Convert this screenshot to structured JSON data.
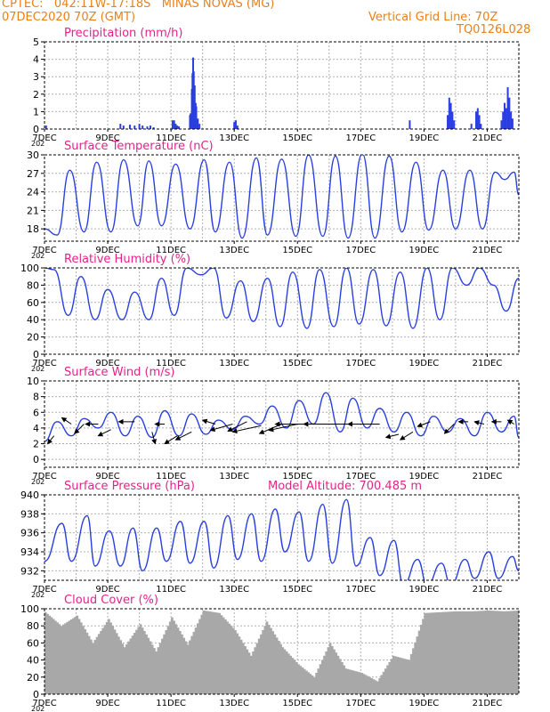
{
  "header": {
    "line1_left": "CPTEC:   042:11W-17:18S   MINAS NOVAS (MG)",
    "line2_left": "07DEC2020 70Z (GMT)",
    "line2_right": "Vertical Grid Line: 70Z",
    "line3_right": "TQ0126L028"
  },
  "colors": {
    "header": "#e8801a",
    "title": "#e8208a",
    "series": "#2a3fe0",
    "cloud": "#a8a8a8",
    "grid": "#b0b0b0"
  },
  "x_tick_labels": [
    "7DEC",
    "9DEC",
    "11DEC",
    "13DEC",
    "15DEC",
    "17DEC",
    "19DEC",
    "21DEC"
  ],
  "cut_year_label": "202",
  "chart_data": [
    {
      "type": "bar",
      "title": "Precipitation (mm/h)",
      "ylim": [
        0,
        5
      ],
      "yticks": [
        0,
        1,
        2,
        3,
        4,
        5
      ],
      "x": [
        0.05,
        2.4,
        2.5,
        2.7,
        2.85,
        3.0,
        3.1,
        3.25,
        3.35,
        3.45,
        4.05,
        4.1,
        4.15,
        4.2,
        4.25,
        4.6,
        4.62,
        4.66,
        4.68,
        4.7,
        4.72,
        4.75,
        4.78,
        4.8,
        4.85,
        4.9,
        6.0,
        6.05,
        6.1,
        11.55,
        12.75,
        12.8,
        12.85,
        12.9,
        12.95,
        13.5,
        13.65,
        13.7,
        13.75,
        13.8,
        14.45,
        14.5,
        14.55,
        14.6,
        14.65,
        14.7,
        14.75,
        14.8
      ],
      "values": [
        0.2,
        0.3,
        0.2,
        0.25,
        0.2,
        0.3,
        0.2,
        0.15,
        0.2,
        0.1,
        0.5,
        0.5,
        0.3,
        0.2,
        0.15,
        0.8,
        0.9,
        2.3,
        3.2,
        4.1,
        3.3,
        2.5,
        1.5,
        1.3,
        0.6,
        0.3,
        0.4,
        0.5,
        0.2,
        0.5,
        0.8,
        1.8,
        1.5,
        1.0,
        0.5,
        0.3,
        1.0,
        1.2,
        0.8,
        0.3,
        0.5,
        1.0,
        1.5,
        1.2,
        2.4,
        1.8,
        1.0,
        0.6
      ]
    },
    {
      "type": "line",
      "title": "Surface Temperature (nC)",
      "ylim": [
        16,
        30
      ],
      "yticks": [
        18,
        21,
        24,
        27,
        30
      ],
      "x": [
        0,
        0.4,
        0.8,
        1.25,
        1.65,
        2.1,
        2.5,
        2.95,
        3.3,
        3.7,
        4.15,
        4.6,
        5.05,
        5.4,
        5.85,
        6.25,
        6.7,
        7.05,
        7.5,
        7.95,
        8.35,
        8.8,
        9.2,
        9.6,
        10.05,
        10.45,
        10.9,
        11.3,
        11.75,
        12.15,
        12.6,
        13.0,
        13.45,
        13.85,
        14.25,
        14.55,
        14.85,
        15.0
      ],
      "values": [
        18.0,
        17.0,
        27.5,
        17.5,
        28.8,
        17.5,
        29.2,
        18.5,
        29.0,
        18.5,
        28.5,
        18.0,
        29.2,
        17.5,
        28.8,
        16.5,
        29.5,
        17.0,
        29.3,
        16.8,
        30.0,
        16.8,
        29.8,
        16.5,
        30.2,
        16.5,
        29.8,
        17.5,
        28.8,
        17.8,
        27.5,
        18.0,
        27.5,
        18.0,
        27.2,
        26.0,
        27.2,
        23.5
      ]
    },
    {
      "type": "line",
      "title": "Relative Humidity (%)",
      "ylim": [
        0,
        100
      ],
      "yticks": [
        0,
        20,
        40,
        60,
        80,
        100
      ],
      "x": [
        0,
        0.3,
        0.75,
        1.15,
        1.6,
        2.0,
        2.45,
        2.85,
        3.3,
        3.7,
        4.1,
        4.5,
        4.95,
        5.35,
        5.75,
        6.2,
        6.6,
        7.05,
        7.45,
        7.85,
        8.3,
        8.7,
        9.15,
        9.55,
        9.95,
        10.4,
        10.8,
        11.25,
        11.65,
        12.1,
        12.5,
        12.9,
        13.35,
        13.75,
        14.2,
        14.6,
        15.0
      ],
      "values": [
        100,
        98,
        45,
        90,
        40,
        75,
        40,
        72,
        40,
        88,
        45,
        100,
        92,
        100,
        42,
        85,
        38,
        88,
        32,
        95,
        30,
        98,
        32,
        100,
        35,
        98,
        33,
        95,
        30,
        100,
        40,
        100,
        80,
        100,
        80,
        50,
        88
      ]
    },
    {
      "type": "line",
      "title": "Surface Wind (m/s)",
      "ylim": [
        -1,
        10
      ],
      "yticks": [
        0,
        2,
        4,
        6,
        8,
        10
      ],
      "x": [
        0,
        0.4,
        0.85,
        1.25,
        1.7,
        2.1,
        2.55,
        2.95,
        3.4,
        3.8,
        4.25,
        4.65,
        5.1,
        5.5,
        5.95,
        6.35,
        6.8,
        7.2,
        7.65,
        8.05,
        8.5,
        8.9,
        9.35,
        9.75,
        10.2,
        10.6,
        11.05,
        11.45,
        11.9,
        12.3,
        12.75,
        13.15,
        13.6,
        14.0,
        14.45,
        14.85,
        15.0
      ],
      "values": [
        2.3,
        4.8,
        3.0,
        5.2,
        4.0,
        6.0,
        3.0,
        5.5,
        2.8,
        6.2,
        3.0,
        5.8,
        3.2,
        5.0,
        3.8,
        5.5,
        4.5,
        6.8,
        4.0,
        7.5,
        4.5,
        8.5,
        3.5,
        7.8,
        4.0,
        6.5,
        3.5,
        6.0,
        3.0,
        5.5,
        3.5,
        5.2,
        3.0,
        6.0,
        3.5,
        5.5,
        2.8
      ],
      "wind_vectors": [
        {
          "x": 0.3,
          "y": 3.0,
          "dx": -0.2,
          "dy": -1.0
        },
        {
          "x": 0.85,
          "y": 4.5,
          "dx": -0.3,
          "dy": 0.8
        },
        {
          "x": 1.25,
          "y": 4.5,
          "dx": -0.3,
          "dy": -1.2
        },
        {
          "x": 1.7,
          "y": 4.5,
          "dx": -0.4,
          "dy": 0.0
        },
        {
          "x": 2.1,
          "y": 3.8,
          "dx": -0.4,
          "dy": -0.8
        },
        {
          "x": 2.85,
          "y": 4.8,
          "dx": -0.5,
          "dy": 0.0
        },
        {
          "x": 3.4,
          "y": 3.5,
          "dx": 0.1,
          "dy": -1.5
        },
        {
          "x": 3.8,
          "y": 4.5,
          "dx": -0.3,
          "dy": 0.0
        },
        {
          "x": 4.2,
          "y": 3.0,
          "dx": -0.4,
          "dy": -1.0
        },
        {
          "x": 4.65,
          "y": 3.5,
          "dx": -0.5,
          "dy": -1.0
        },
        {
          "x": 5.4,
          "y": 4.5,
          "dx": -0.4,
          "dy": 0.5
        },
        {
          "x": 5.95,
          "y": 4.5,
          "dx": -0.7,
          "dy": -0.8
        },
        {
          "x": 6.4,
          "y": 4.8,
          "dx": -0.6,
          "dy": -1.2
        },
        {
          "x": 6.85,
          "y": 4.3,
          "dx": -0.9,
          "dy": -0.8
        },
        {
          "x": 7.5,
          "y": 4.5,
          "dx": -0.7,
          "dy": -1.2
        },
        {
          "x": 8.0,
          "y": 4.5,
          "dx": -0.9,
          "dy": -0.8
        },
        {
          "x": 8.6,
          "y": 4.5,
          "dx": -1.3,
          "dy": 0.0
        },
        {
          "x": 9.6,
          "y": 4.5,
          "dx": -1.4,
          "dy": 0.0
        },
        {
          "x": 10.6,
          "y": 4.5,
          "dx": -1.0,
          "dy": 0.0
        },
        {
          "x": 11.2,
          "y": 3.2,
          "dx": -0.4,
          "dy": -0.4
        },
        {
          "x": 11.65,
          "y": 3.5,
          "dx": -0.4,
          "dy": -1.0
        },
        {
          "x": 12.2,
          "y": 4.8,
          "dx": -0.4,
          "dy": -0.6
        },
        {
          "x": 12.95,
          "y": 4.5,
          "dx": -0.3,
          "dy": -1.2
        },
        {
          "x": 13.4,
          "y": 4.8,
          "dx": -0.3,
          "dy": 0.0
        },
        {
          "x": 13.9,
          "y": 4.5,
          "dx": -0.3,
          "dy": 0.3
        },
        {
          "x": 14.45,
          "y": 4.8,
          "dx": -0.3,
          "dy": 0.0
        },
        {
          "x": 14.85,
          "y": 4.5,
          "dx": -0.2,
          "dy": 0.5
        }
      ]
    },
    {
      "type": "line",
      "title": "Surface Pressure (hPa)",
      "subtitle": "Model Altitude: 700.485 m",
      "ylim": [
        931,
        940
      ],
      "yticks": [
        932,
        934,
        936,
        938,
        940
      ],
      "x": [
        0,
        0.55,
        0.85,
        1.35,
        1.6,
        2.05,
        2.4,
        2.8,
        3.1,
        3.55,
        3.85,
        4.3,
        4.6,
        5.05,
        5.35,
        5.8,
        6.1,
        6.55,
        6.85,
        7.3,
        7.6,
        8.05,
        8.35,
        8.8,
        9.1,
        9.55,
        9.85,
        10.3,
        10.6,
        11.05,
        11.35,
        11.8,
        12.1,
        12.55,
        12.85,
        13.3,
        13.6,
        14.05,
        14.35,
        14.8,
        15.0
      ],
      "values": [
        933.0,
        937.0,
        933.0,
        937.8,
        932.5,
        936.2,
        932.5,
        936.5,
        932.0,
        936.5,
        933.0,
        937.2,
        932.8,
        937.2,
        932.3,
        937.8,
        933.2,
        938.0,
        933.0,
        938.5,
        934.0,
        938.2,
        933.0,
        939.0,
        932.8,
        939.5,
        932.5,
        935.5,
        931.5,
        935.2,
        930.5,
        933.2,
        930.5,
        932.8,
        930.5,
        933.2,
        931.2,
        934.0,
        931.2,
        933.5,
        932.0
      ]
    },
    {
      "type": "area",
      "title": "Cloud Cover (%)",
      "ylim": [
        0,
        100
      ],
      "yticks": [
        0,
        20,
        40,
        60,
        80,
        100
      ],
      "x": [
        0,
        0.5,
        1.0,
        1.5,
        2.0,
        2.5,
        3.0,
        3.5,
        4.0,
        4.5,
        5.0,
        5.5,
        6.0,
        6.5,
        7.0,
        7.5,
        8.0,
        8.5,
        9.0,
        9.5,
        10.0,
        10.5,
        11.0,
        11.5,
        12.0,
        12.5,
        13.0,
        13.5,
        14.0,
        14.5,
        15.0
      ],
      "values": [
        96,
        80,
        92,
        60,
        88,
        55,
        82,
        50,
        90,
        58,
        98,
        95,
        75,
        45,
        85,
        55,
        35,
        20,
        60,
        30,
        25,
        15,
        45,
        40,
        95,
        96,
        97,
        97,
        98,
        97,
        98
      ]
    }
  ]
}
